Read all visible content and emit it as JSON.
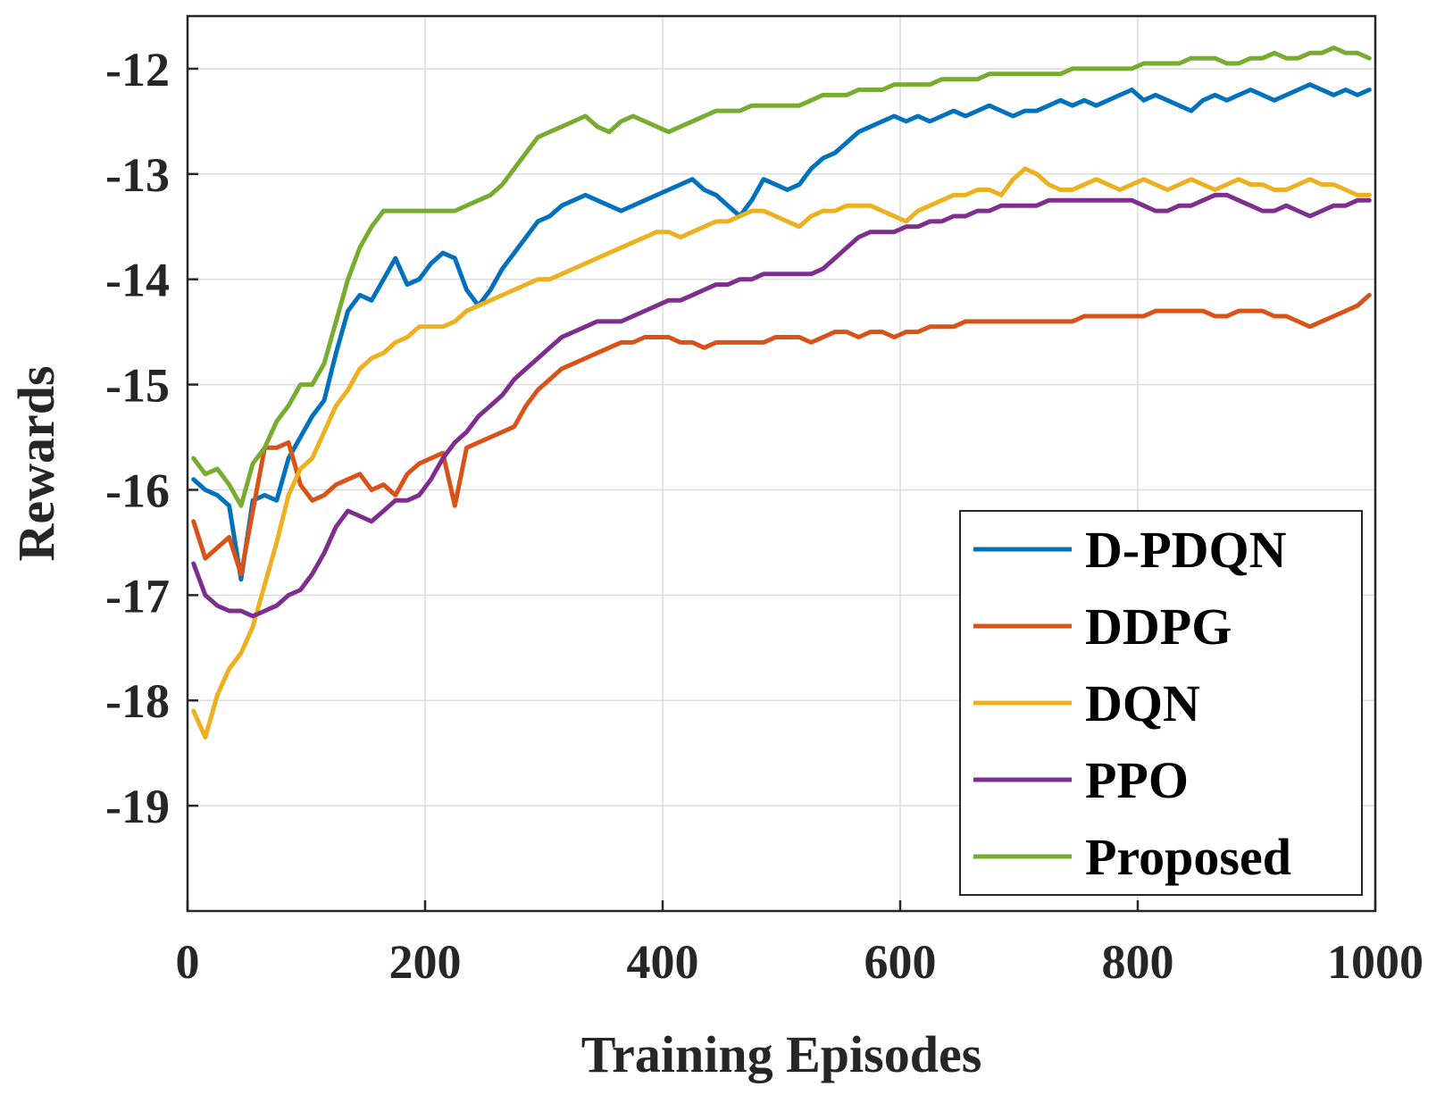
{
  "chart_data": {
    "type": "line",
    "title": "",
    "xlabel": "Training Episodes",
    "ylabel": "Rewards",
    "xlim": [
      0,
      1000
    ],
    "ylim": [
      -20,
      -11.5
    ],
    "xticks": [
      0,
      200,
      400,
      600,
      800,
      1000
    ],
    "yticks": [
      -19,
      -18,
      -17,
      -16,
      -15,
      -14,
      -13,
      -12
    ],
    "xtick_labels": [
      "0",
      "200",
      "400",
      "600",
      "800",
      "1000"
    ],
    "ytick_labels": [
      "-19",
      "-18",
      "-17",
      "-16",
      "-15",
      "-14",
      "-13",
      "-12"
    ],
    "grid": true,
    "legend_position": "bottom-right",
    "series": [
      {
        "name": "D-PDQN",
        "color": "#0072BD",
        "x": [
          5,
          15,
          25,
          35,
          45,
          55,
          65,
          75,
          85,
          95,
          105,
          115,
          125,
          135,
          145,
          155,
          165,
          175,
          185,
          195,
          205,
          215,
          225,
          235,
          245,
          255,
          265,
          275,
          285,
          295,
          305,
          315,
          325,
          335,
          345,
          355,
          365,
          375,
          385,
          395,
          405,
          415,
          425,
          435,
          445,
          455,
          465,
          475,
          485,
          495,
          505,
          515,
          525,
          535,
          545,
          555,
          565,
          575,
          585,
          595,
          605,
          615,
          625,
          635,
          645,
          655,
          665,
          675,
          685,
          695,
          705,
          715,
          725,
          735,
          745,
          755,
          765,
          775,
          785,
          795,
          805,
          815,
          825,
          835,
          845,
          855,
          865,
          875,
          885,
          895,
          905,
          915,
          925,
          935,
          945,
          955,
          965,
          975,
          985,
          995
        ],
        "values": [
          -15.9,
          -16.0,
          -16.05,
          -16.15,
          -16.85,
          -16.1,
          -16.05,
          -16.1,
          -15.7,
          -15.5,
          -15.3,
          -15.15,
          -14.7,
          -14.3,
          -14.15,
          -14.2,
          -14.0,
          -13.8,
          -14.05,
          -14.0,
          -13.85,
          -13.75,
          -13.8,
          -14.1,
          -14.25,
          -14.1,
          -13.9,
          -13.75,
          -13.6,
          -13.45,
          -13.4,
          -13.3,
          -13.25,
          -13.2,
          -13.25,
          -13.3,
          -13.35,
          -13.3,
          -13.25,
          -13.2,
          -13.15,
          -13.1,
          -13.05,
          -13.15,
          -13.2,
          -13.3,
          -13.4,
          -13.25,
          -13.05,
          -13.1,
          -13.15,
          -13.1,
          -12.95,
          -12.85,
          -12.8,
          -12.7,
          -12.6,
          -12.55,
          -12.5,
          -12.45,
          -12.5,
          -12.45,
          -12.5,
          -12.45,
          -12.4,
          -12.45,
          -12.4,
          -12.35,
          -12.4,
          -12.45,
          -12.4,
          -12.4,
          -12.35,
          -12.3,
          -12.35,
          -12.3,
          -12.35,
          -12.3,
          -12.25,
          -12.2,
          -12.3,
          -12.25,
          -12.3,
          -12.35,
          -12.4,
          -12.3,
          -12.25,
          -12.3,
          -12.25,
          -12.2,
          -12.25,
          -12.3,
          -12.25,
          -12.2,
          -12.15,
          -12.2,
          -12.25,
          -12.2,
          -12.25,
          -12.2
        ]
      },
      {
        "name": "DDPG",
        "color": "#D95319",
        "x": [
          5,
          15,
          25,
          35,
          45,
          55,
          65,
          75,
          85,
          95,
          105,
          115,
          125,
          135,
          145,
          155,
          165,
          175,
          185,
          195,
          205,
          215,
          225,
          235,
          245,
          255,
          265,
          275,
          285,
          295,
          305,
          315,
          325,
          335,
          345,
          355,
          365,
          375,
          385,
          395,
          405,
          415,
          425,
          435,
          445,
          455,
          465,
          475,
          485,
          495,
          505,
          515,
          525,
          535,
          545,
          555,
          565,
          575,
          585,
          595,
          605,
          615,
          625,
          635,
          645,
          655,
          665,
          675,
          685,
          695,
          705,
          715,
          725,
          735,
          745,
          755,
          765,
          775,
          785,
          795,
          805,
          815,
          825,
          835,
          845,
          855,
          865,
          875,
          885,
          895,
          905,
          915,
          925,
          935,
          945,
          955,
          965,
          975,
          985,
          995
        ],
        "values": [
          -16.3,
          -16.65,
          -16.55,
          -16.45,
          -16.8,
          -16.2,
          -15.6,
          -15.6,
          -15.55,
          -15.95,
          -16.1,
          -16.05,
          -15.95,
          -15.9,
          -15.85,
          -16.0,
          -15.95,
          -16.05,
          -15.85,
          -15.75,
          -15.7,
          -15.65,
          -16.15,
          -15.6,
          -15.55,
          -15.5,
          -15.45,
          -15.4,
          -15.2,
          -15.05,
          -14.95,
          -14.85,
          -14.8,
          -14.75,
          -14.7,
          -14.65,
          -14.6,
          -14.6,
          -14.55,
          -14.55,
          -14.55,
          -14.6,
          -14.6,
          -14.65,
          -14.6,
          -14.6,
          -14.6,
          -14.6,
          -14.6,
          -14.55,
          -14.55,
          -14.55,
          -14.6,
          -14.55,
          -14.5,
          -14.5,
          -14.55,
          -14.5,
          -14.5,
          -14.55,
          -14.5,
          -14.5,
          -14.45,
          -14.45,
          -14.45,
          -14.4,
          -14.4,
          -14.4,
          -14.4,
          -14.4,
          -14.4,
          -14.4,
          -14.4,
          -14.4,
          -14.4,
          -14.35,
          -14.35,
          -14.35,
          -14.35,
          -14.35,
          -14.35,
          -14.3,
          -14.3,
          -14.3,
          -14.3,
          -14.3,
          -14.35,
          -14.35,
          -14.3,
          -14.3,
          -14.3,
          -14.35,
          -14.35,
          -14.4,
          -14.45,
          -14.4,
          -14.35,
          -14.3,
          -14.25,
          -14.15
        ]
      },
      {
        "name": "DQN",
        "color": "#EDB120",
        "x": [
          5,
          15,
          25,
          35,
          45,
          55,
          65,
          75,
          85,
          95,
          105,
          115,
          125,
          135,
          145,
          155,
          165,
          175,
          185,
          195,
          205,
          215,
          225,
          235,
          245,
          255,
          265,
          275,
          285,
          295,
          305,
          315,
          325,
          335,
          345,
          355,
          365,
          375,
          385,
          395,
          405,
          415,
          425,
          435,
          445,
          455,
          465,
          475,
          485,
          495,
          505,
          515,
          525,
          535,
          545,
          555,
          565,
          575,
          585,
          595,
          605,
          615,
          625,
          635,
          645,
          655,
          665,
          675,
          685,
          695,
          705,
          715,
          725,
          735,
          745,
          755,
          765,
          775,
          785,
          795,
          805,
          815,
          825,
          835,
          845,
          855,
          865,
          875,
          885,
          895,
          905,
          915,
          925,
          935,
          945,
          955,
          965,
          975,
          985,
          995
        ],
        "values": [
          -18.1,
          -18.35,
          -17.95,
          -17.7,
          -17.55,
          -17.3,
          -16.9,
          -16.5,
          -16.05,
          -15.8,
          -15.7,
          -15.45,
          -15.2,
          -15.05,
          -14.85,
          -14.75,
          -14.7,
          -14.6,
          -14.55,
          -14.45,
          -14.45,
          -14.45,
          -14.4,
          -14.3,
          -14.25,
          -14.2,
          -14.15,
          -14.1,
          -14.05,
          -14.0,
          -14.0,
          -13.95,
          -13.9,
          -13.85,
          -13.8,
          -13.75,
          -13.7,
          -13.65,
          -13.6,
          -13.55,
          -13.55,
          -13.6,
          -13.55,
          -13.5,
          -13.45,
          -13.45,
          -13.4,
          -13.35,
          -13.35,
          -13.4,
          -13.45,
          -13.5,
          -13.4,
          -13.35,
          -13.35,
          -13.3,
          -13.3,
          -13.3,
          -13.35,
          -13.4,
          -13.45,
          -13.35,
          -13.3,
          -13.25,
          -13.2,
          -13.2,
          -13.15,
          -13.15,
          -13.2,
          -13.05,
          -12.95,
          -13.0,
          -13.1,
          -13.15,
          -13.15,
          -13.1,
          -13.05,
          -13.1,
          -13.15,
          -13.1,
          -13.05,
          -13.1,
          -13.15,
          -13.1,
          -13.05,
          -13.1,
          -13.15,
          -13.1,
          -13.05,
          -13.1,
          -13.1,
          -13.15,
          -13.15,
          -13.1,
          -13.05,
          -13.1,
          -13.1,
          -13.15,
          -13.2,
          -13.2
        ]
      },
      {
        "name": "PPO",
        "color": "#7E2F8E",
        "x": [
          5,
          15,
          25,
          35,
          45,
          55,
          65,
          75,
          85,
          95,
          105,
          115,
          125,
          135,
          145,
          155,
          165,
          175,
          185,
          195,
          205,
          215,
          225,
          235,
          245,
          255,
          265,
          275,
          285,
          295,
          305,
          315,
          325,
          335,
          345,
          355,
          365,
          375,
          385,
          395,
          405,
          415,
          425,
          435,
          445,
          455,
          465,
          475,
          485,
          495,
          505,
          515,
          525,
          535,
          545,
          555,
          565,
          575,
          585,
          595,
          605,
          615,
          625,
          635,
          645,
          655,
          665,
          675,
          685,
          695,
          705,
          715,
          725,
          735,
          745,
          755,
          765,
          775,
          785,
          795,
          805,
          815,
          825,
          835,
          845,
          855,
          865,
          875,
          885,
          895,
          905,
          915,
          925,
          935,
          945,
          955,
          965,
          975,
          985,
          995
        ],
        "values": [
          -16.7,
          -17.0,
          -17.1,
          -17.15,
          -17.15,
          -17.2,
          -17.15,
          -17.1,
          -17.0,
          -16.95,
          -16.8,
          -16.6,
          -16.35,
          -16.2,
          -16.25,
          -16.3,
          -16.2,
          -16.1,
          -16.1,
          -16.05,
          -15.9,
          -15.7,
          -15.55,
          -15.45,
          -15.3,
          -15.2,
          -15.1,
          -14.95,
          -14.85,
          -14.75,
          -14.65,
          -14.55,
          -14.5,
          -14.45,
          -14.4,
          -14.4,
          -14.4,
          -14.35,
          -14.3,
          -14.25,
          -14.2,
          -14.2,
          -14.15,
          -14.1,
          -14.05,
          -14.05,
          -14.0,
          -14.0,
          -13.95,
          -13.95,
          -13.95,
          -13.95,
          -13.95,
          -13.9,
          -13.8,
          -13.7,
          -13.6,
          -13.55,
          -13.55,
          -13.55,
          -13.5,
          -13.5,
          -13.45,
          -13.45,
          -13.4,
          -13.4,
          -13.35,
          -13.35,
          -13.3,
          -13.3,
          -13.3,
          -13.3,
          -13.25,
          -13.25,
          -13.25,
          -13.25,
          -13.25,
          -13.25,
          -13.25,
          -13.25,
          -13.3,
          -13.35,
          -13.35,
          -13.3,
          -13.3,
          -13.25,
          -13.2,
          -13.2,
          -13.25,
          -13.3,
          -13.35,
          -13.35,
          -13.3,
          -13.35,
          -13.4,
          -13.35,
          -13.3,
          -13.3,
          -13.25,
          -13.25
        ]
      },
      {
        "name": "Proposed",
        "color": "#77AC30",
        "x": [
          5,
          15,
          25,
          35,
          45,
          55,
          65,
          75,
          85,
          95,
          105,
          115,
          125,
          135,
          145,
          155,
          165,
          175,
          185,
          195,
          205,
          215,
          225,
          235,
          245,
          255,
          265,
          275,
          285,
          295,
          305,
          315,
          325,
          335,
          345,
          355,
          365,
          375,
          385,
          395,
          405,
          415,
          425,
          435,
          445,
          455,
          465,
          475,
          485,
          495,
          505,
          515,
          525,
          535,
          545,
          555,
          565,
          575,
          585,
          595,
          605,
          615,
          625,
          635,
          645,
          655,
          665,
          675,
          685,
          695,
          705,
          715,
          725,
          735,
          745,
          755,
          765,
          775,
          785,
          795,
          805,
          815,
          825,
          835,
          845,
          855,
          865,
          875,
          885,
          895,
          905,
          915,
          925,
          935,
          945,
          955,
          965,
          975,
          985,
          995
        ],
        "values": [
          -15.7,
          -15.85,
          -15.8,
          -15.95,
          -16.15,
          -15.75,
          -15.6,
          -15.35,
          -15.2,
          -15.0,
          -15.0,
          -14.8,
          -14.4,
          -14.0,
          -13.7,
          -13.5,
          -13.35,
          -13.35,
          -13.35,
          -13.35,
          -13.35,
          -13.35,
          -13.35,
          -13.3,
          -13.25,
          -13.2,
          -13.1,
          -12.95,
          -12.8,
          -12.65,
          -12.6,
          -12.55,
          -12.5,
          -12.45,
          -12.55,
          -12.6,
          -12.5,
          -12.45,
          -12.5,
          -12.55,
          -12.6,
          -12.55,
          -12.5,
          -12.45,
          -12.4,
          -12.4,
          -12.4,
          -12.35,
          -12.35,
          -12.35,
          -12.35,
          -12.35,
          -12.3,
          -12.25,
          -12.25,
          -12.25,
          -12.2,
          -12.2,
          -12.2,
          -12.15,
          -12.15,
          -12.15,
          -12.15,
          -12.1,
          -12.1,
          -12.1,
          -12.1,
          -12.05,
          -12.05,
          -12.05,
          -12.05,
          -12.05,
          -12.05,
          -12.05,
          -12.0,
          -12.0,
          -12.0,
          -12.0,
          -12.0,
          -12.0,
          -11.95,
          -11.95,
          -11.95,
          -11.95,
          -11.9,
          -11.9,
          -11.9,
          -11.95,
          -11.95,
          -11.9,
          -11.9,
          -11.85,
          -11.9,
          -11.9,
          -11.85,
          -11.85,
          -11.8,
          -11.85,
          -11.85,
          -11.9
        ]
      }
    ]
  }
}
